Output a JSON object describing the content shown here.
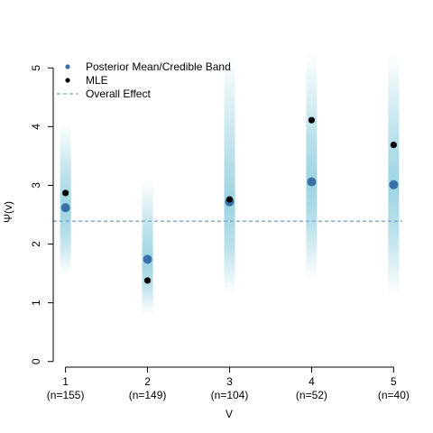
{
  "chart_data": {
    "type": "scatter",
    "xlabel": "V",
    "ylabel": "Ψ(v)",
    "xlim": [
      0.85,
      5.15
    ],
    "ylim": [
      -0.05,
      5.25
    ],
    "grid": false,
    "legend_position": "top-left",
    "x_ticks": [
      {
        "value": 1,
        "label": "1",
        "sublabel": "(n=155)"
      },
      {
        "value": 2,
        "label": "2",
        "sublabel": "(n=149)"
      },
      {
        "value": 3,
        "label": "3",
        "sublabel": "(n=104)"
      },
      {
        "value": 4,
        "label": "4",
        "sublabel": "(n=52)"
      },
      {
        "value": 5,
        "label": "5",
        "sublabel": "(n=40)"
      }
    ],
    "y_ticks": [
      {
        "value": 0,
        "label": "0"
      },
      {
        "value": 1,
        "label": "1"
      },
      {
        "value": 2,
        "label": "2"
      },
      {
        "value": 3,
        "label": "3"
      },
      {
        "value": 4,
        "label": "4"
      },
      {
        "value": 5,
        "label": "5"
      }
    ],
    "series": [
      {
        "name": "Posterior Mean/Credible Band",
        "color": "#3a6fa8",
        "band_color": "#7cc6d8",
        "points": [
          {
            "x": 1,
            "y": 2.62,
            "band_low": 1.45,
            "band_high": 4.05
          },
          {
            "x": 2,
            "y": 1.74,
            "band_low": 0.8,
            "band_high": 3.1
          },
          {
            "x": 3,
            "y": 2.72,
            "band_low": 1.15,
            "band_high": 5.25
          },
          {
            "x": 4,
            "y": 3.06,
            "band_low": 1.4,
            "band_high": 5.25
          },
          {
            "x": 5,
            "y": 3.01,
            "band_low": 1.1,
            "band_high": 5.25
          }
        ]
      },
      {
        "name": "MLE",
        "color": "#000000",
        "points": [
          {
            "x": 1,
            "y": 2.87
          },
          {
            "x": 2,
            "y": 1.38
          },
          {
            "x": 3,
            "y": 2.76
          },
          {
            "x": 4,
            "y": 4.11
          },
          {
            "x": 5,
            "y": 3.69
          }
        ]
      }
    ],
    "reference_line": {
      "name": "Overall Effect",
      "y": 2.39,
      "color": "#7aa7d3",
      "style": "dashed"
    }
  }
}
